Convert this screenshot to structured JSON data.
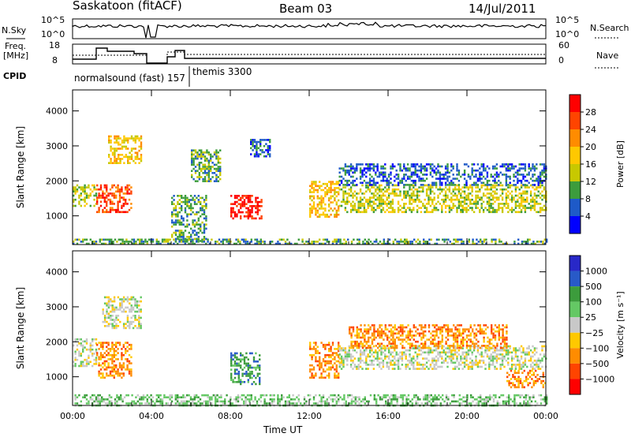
{
  "header": {
    "station": "Saskatoon (fitACF)",
    "beam": "Beam 03",
    "date": "14/Jul/2011"
  },
  "top_panels": {
    "nsky_label": "N.Sky",
    "nsky_ticks": [
      "10^5",
      "10^0"
    ],
    "nsearch_label": "N.Search",
    "nsearch_ticks": [
      "10^5",
      "10^0"
    ],
    "freq_label_1": "Freq.",
    "freq_label_2": "[MHz]",
    "freq_ticks": [
      "18",
      "8"
    ],
    "nave_label": "Nave",
    "nave_ticks": [
      "60",
      "0"
    ],
    "cpid_label": "CPID",
    "cpid_segments": [
      {
        "text": "normalsound (fast) 157",
        "start_hour": 0
      },
      {
        "text": "themis 3300",
        "start_hour": 5.9
      }
    ]
  },
  "chart_data": [
    {
      "type": "heatmap",
      "title": "",
      "ylabel": "Slant Range [km]",
      "xlabel": "",
      "x_ticks": [
        "00:00",
        "04:00",
        "08:00",
        "12:00",
        "16:00",
        "20:00",
        "00:00"
      ],
      "xlim_hours": [
        0,
        24
      ],
      "y_ticks": [
        1000,
        2000,
        3000,
        4000
      ],
      "ylim": [
        180,
        4600
      ],
      "colorbar": {
        "label": "Power [dB]",
        "ticks": [
          "28",
          "24",
          "20",
          "16",
          "12",
          "8",
          "4"
        ],
        "colors": [
          "#ff0000",
          "#ff4400",
          "#ff8c00",
          "#ffc800",
          "#c8c800",
          "#3c9c3c",
          "#1e5ac8",
          "#0000ff"
        ]
      },
      "regions": [
        {
          "t0": 0,
          "t1": 1.2,
          "r0": 1300,
          "r1": 1900,
          "level": 4
        },
        {
          "t0": 1.2,
          "t1": 3.0,
          "r0": 1100,
          "r1": 1900,
          "level": 1
        },
        {
          "t0": 1.8,
          "t1": 3.5,
          "r0": 2500,
          "r1": 3300,
          "level": 3
        },
        {
          "t0": 5.0,
          "t1": 6.8,
          "r0": 300,
          "r1": 1600,
          "level": 5
        },
        {
          "t0": 6.0,
          "t1": 7.5,
          "r0": 2000,
          "r1": 2900,
          "level": 5
        },
        {
          "t0": 8.0,
          "t1": 9.6,
          "r0": 900,
          "r1": 1600,
          "level": 0
        },
        {
          "t0": 9.0,
          "t1": 10.0,
          "r0": 2700,
          "r1": 3200,
          "level": 6
        },
        {
          "t0": 12.0,
          "t1": 13.5,
          "r0": 1000,
          "r1": 2000,
          "level": 3
        },
        {
          "t0": 13.5,
          "t1": 24.0,
          "r0": 1100,
          "r1": 1900,
          "level": 4
        },
        {
          "t0": 13.5,
          "t1": 24.0,
          "r0": 1900,
          "r1": 2500,
          "level": 6
        },
        {
          "t0": 0,
          "t1": 24.0,
          "r0": 180,
          "r1": 350,
          "level": 5
        }
      ]
    },
    {
      "type": "heatmap",
      "title": "",
      "ylabel": "Slant Range [km]",
      "xlabel": "Time UT",
      "x_ticks": [
        "00:00",
        "04:00",
        "08:00",
        "12:00",
        "16:00",
        "20:00",
        "00:00"
      ],
      "xlim_hours": [
        0,
        24
      ],
      "y_ticks": [
        1000,
        2000,
        3000,
        4000
      ],
      "ylim": [
        180,
        4600
      ],
      "colorbar": {
        "label": "Velocity [m s⁻¹]",
        "ticks": [
          "1000",
          "500",
          "100",
          "25",
          "−25",
          "−100",
          "−500",
          "−1000"
        ],
        "colors": [
          "#2828c8",
          "#285ac8",
          "#3c9c3c",
          "#64c864",
          "#c8c8c8",
          "#ffc800",
          "#ff8c00",
          "#ff4400",
          "#ff0000"
        ]
      },
      "regions": [
        {
          "t0": 0,
          "t1": 1.2,
          "r0": 1300,
          "r1": 2100,
          "level": 4
        },
        {
          "t0": 1.2,
          "t1": 3.0,
          "r0": 1000,
          "r1": 2000,
          "level": 6
        },
        {
          "t0": 1.5,
          "t1": 3.5,
          "r0": 2400,
          "r1": 3300,
          "level": 4
        },
        {
          "t0": 8.0,
          "t1": 9.5,
          "r0": 800,
          "r1": 1700,
          "level": 2
        },
        {
          "t0": 12.0,
          "t1": 13.5,
          "r0": 1000,
          "r1": 2000,
          "level": 6
        },
        {
          "t0": 13.5,
          "t1": 24.0,
          "r0": 1200,
          "r1": 1900,
          "level": 4
        },
        {
          "t0": 14.0,
          "t1": 22.0,
          "r0": 1800,
          "r1": 2500,
          "level": 6
        },
        {
          "t0": 22.0,
          "t1": 24.0,
          "r0": 700,
          "r1": 1200,
          "level": 6
        },
        {
          "t0": 0,
          "t1": 24.0,
          "r0": 180,
          "r1": 500,
          "level": 3
        }
      ]
    }
  ]
}
